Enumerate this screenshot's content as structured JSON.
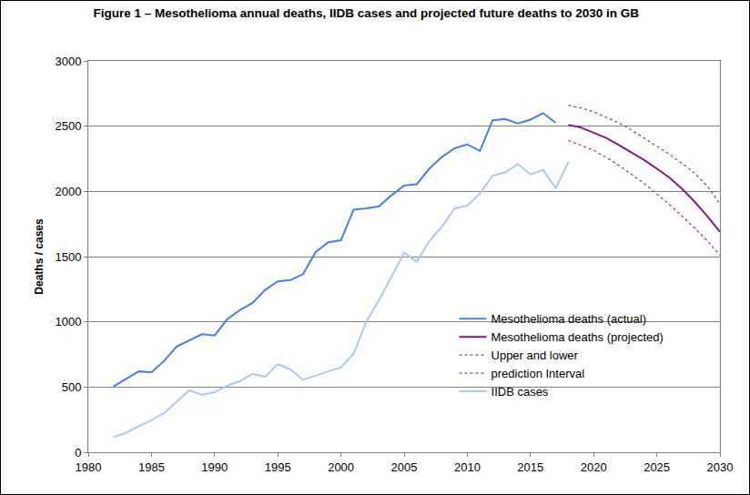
{
  "chart_data": {
    "type": "line",
    "title": "Figure 1 – Mesothelioma annual deaths, IIDB cases and projected future deaths to 2030 in GB",
    "y_label": "Deaths / cases",
    "xlim": [
      1980,
      2030
    ],
    "xticks": [
      1980,
      1985,
      1990,
      1995,
      2000,
      2005,
      2010,
      2015,
      2020,
      2025,
      2030
    ],
    "ylim": [
      0,
      3000
    ],
    "yticks": [
      0,
      500,
      1000,
      1500,
      2000,
      2500,
      3000
    ],
    "grid": true,
    "legend": "lower right",
    "series": [
      {
        "name": "Mesothelioma deaths (actual)",
        "color": "#4a7ee6",
        "line_style": "solid",
        "x": [
          1982,
          1983,
          1984,
          1985,
          1986,
          1987,
          1988,
          1989,
          1990,
          1991,
          1992,
          1993,
          1994,
          1995,
          1996,
          1997,
          1998,
          1999,
          2000,
          2001,
          2002,
          2003,
          2004,
          2005,
          2006,
          2007,
          2008,
          2009,
          2010,
          2011,
          2012,
          2013,
          2014,
          2015,
          2016,
          2017
        ],
        "values": [
          505,
          565,
          620,
          612,
          700,
          810,
          860,
          905,
          895,
          1020,
          1090,
          1145,
          1245,
          1310,
          1320,
          1365,
          1535,
          1610,
          1625,
          1860,
          1870,
          1885,
          1970,
          2045,
          2055,
          2175,
          2265,
          2330,
          2360,
          2310,
          2545,
          2555,
          2520,
          2550,
          2600,
          2525
        ]
      },
      {
        "name": "Mesothelioma deaths (projected)",
        "color": "#7b1f7b",
        "line_style": "solid",
        "x": [
          2018,
          2019,
          2020,
          2021,
          2022,
          2023,
          2024,
          2025,
          2026,
          2027,
          2028,
          2029,
          2030
        ],
        "values": [
          2510,
          2490,
          2450,
          2410,
          2355,
          2300,
          2240,
          2175,
          2105,
          2020,
          1920,
          1810,
          1690
        ]
      },
      {
        "name": "Upper and lower",
        "color": "#9b3d9b",
        "line_style": "dotted",
        "x": [
          2018,
          2019,
          2020,
          2021,
          2022,
          2023,
          2024,
          2025,
          2026,
          2027,
          2028,
          2029,
          2030
        ],
        "values": [
          2660,
          2640,
          2610,
          2570,
          2525,
          2470,
          2410,
          2350,
          2285,
          2215,
          2140,
          2040,
          1905
        ]
      },
      {
        "name": "prediction Interval",
        "color": "#9b3d9b",
        "line_style": "dotted",
        "x": [
          2018,
          2019,
          2020,
          2021,
          2022,
          2023,
          2024,
          2025,
          2026,
          2027,
          2028,
          2029,
          2030
        ],
        "values": [
          2390,
          2355,
          2315,
          2260,
          2200,
          2130,
          2060,
          1980,
          1900,
          1810,
          1720,
          1620,
          1510
        ]
      },
      {
        "name": "IIDB cases",
        "color": "#a9c9f2",
        "line_style": "solid",
        "x": [
          1982,
          1983,
          1984,
          1985,
          1986,
          1987,
          1988,
          1989,
          1990,
          1991,
          1992,
          1993,
          1994,
          1995,
          1996,
          1997,
          1998,
          1999,
          2000,
          2001,
          2002,
          2003,
          2004,
          2005,
          2006,
          2007,
          2008,
          2009,
          2010,
          2011,
          2012,
          2013,
          2014,
          2015,
          2016,
          2017,
          2018
        ],
        "values": [
          115,
          150,
          200,
          245,
          300,
          385,
          475,
          440,
          460,
          510,
          545,
          600,
          580,
          675,
          635,
          555,
          590,
          620,
          650,
          755,
          1000,
          1165,
          1345,
          1530,
          1460,
          1620,
          1730,
          1870,
          1890,
          1985,
          2120,
          2145,
          2210,
          2130,
          2165,
          2025,
          2225
        ]
      }
    ]
  }
}
